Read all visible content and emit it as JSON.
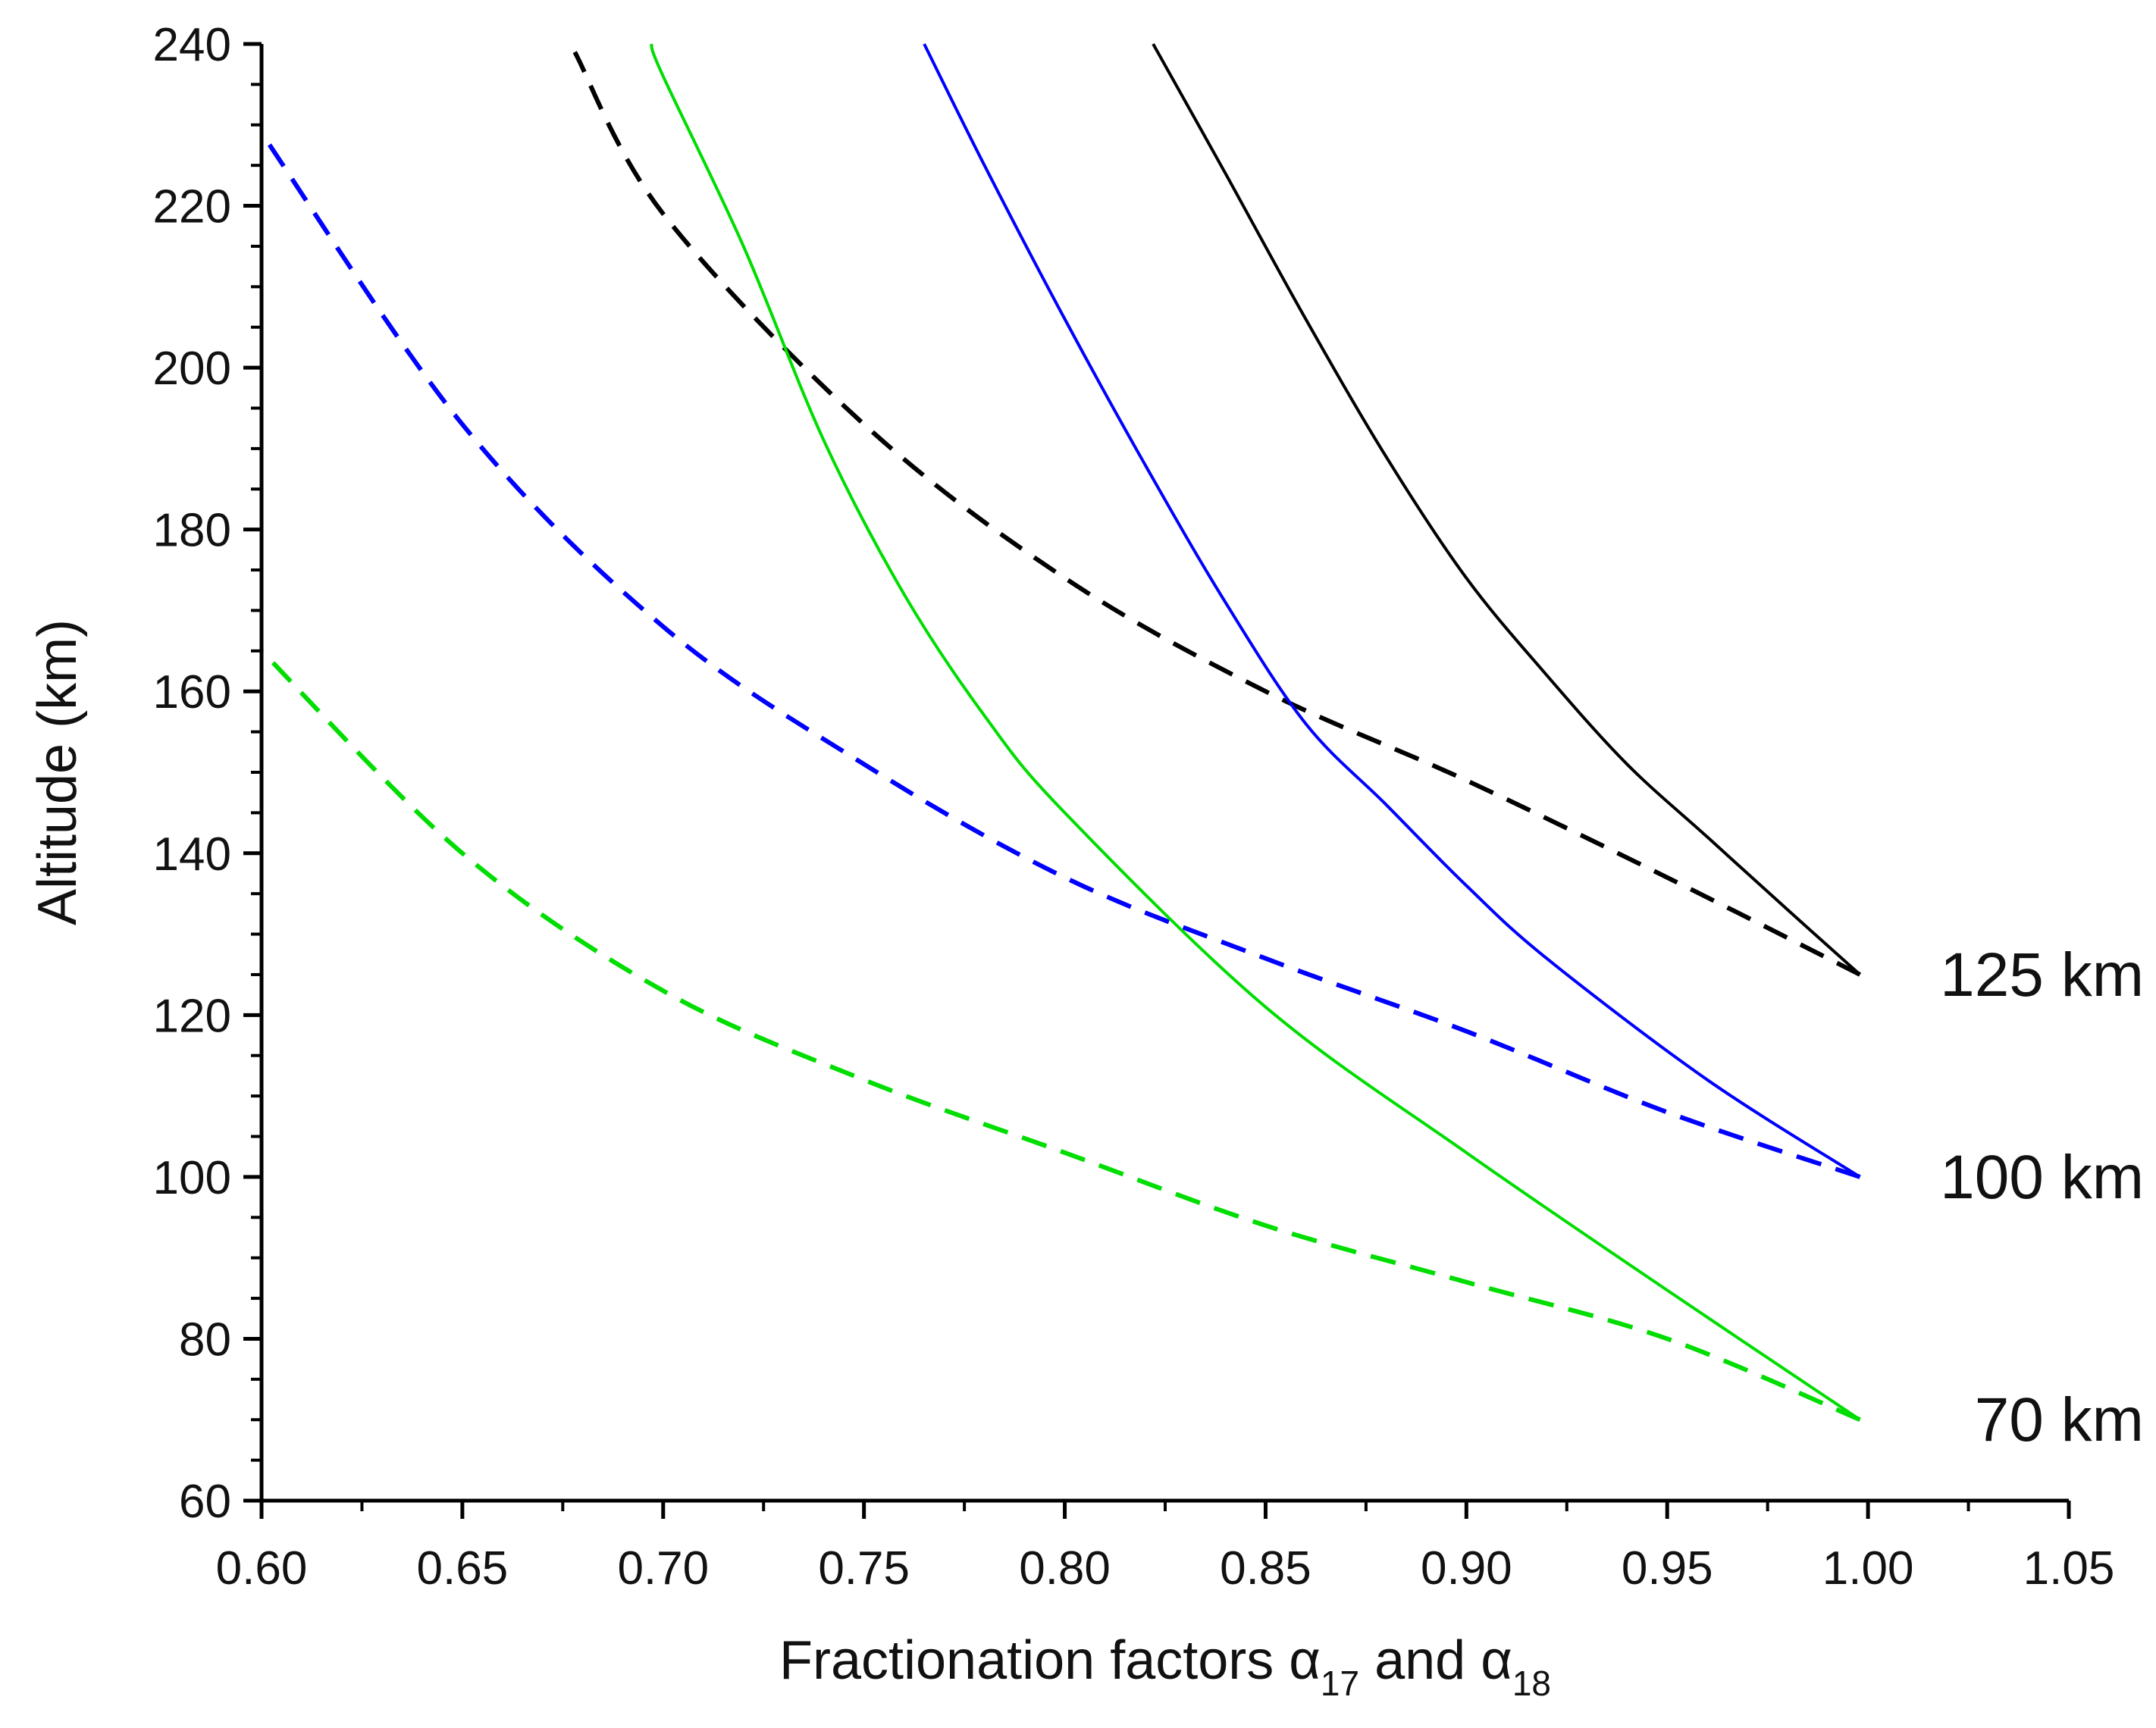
{
  "chart_data": {
    "type": "line",
    "title": "",
    "xlabel_main": "Fractionation factors ",
    "xlabel_greek": "α",
    "xlabel_sub1": "17",
    "xlabel_and": " and ",
    "xlabel_sub2": "18",
    "ylabel": "Altitude (km)",
    "xlim": [
      0.6,
      1.05
    ],
    "ylim": [
      60,
      240
    ],
    "xticks": [
      0.6,
      0.65,
      0.7,
      0.75,
      0.8,
      0.85,
      0.9,
      0.95,
      1.0,
      1.05
    ],
    "xtick_labels": [
      "0.60",
      "0.65",
      "0.70",
      "0.75",
      "0.80",
      "0.85",
      "0.90",
      "0.95",
      "1.00",
      "1.05"
    ],
    "yticks": [
      60,
      80,
      100,
      120,
      140,
      160,
      180,
      200,
      220,
      240
    ],
    "ytick_labels": [
      "60",
      "80",
      "100",
      "120",
      "140",
      "160",
      "180",
      "200",
      "220",
      "240"
    ],
    "series": [
      {
        "name": "125 km solid",
        "color": "#000000",
        "dash": false,
        "x": [
          0.998,
          0.98,
          0.96,
          0.94,
          0.92,
          0.9,
          0.88,
          0.86,
          0.84,
          0.822
        ],
        "y": [
          125,
          133,
          142,
          151,
          162,
          174,
          189,
          206,
          224,
          240
        ]
      },
      {
        "name": "125 km dashed",
        "color": "#000000",
        "dash": true,
        "x": [
          0.998,
          0.95,
          0.9,
          0.85,
          0.8,
          0.75,
          0.7,
          0.678
        ],
        "y": [
          125,
          137,
          149,
          160,
          174,
          193,
          219,
          239
        ]
      },
      {
        "name": "100 km solid",
        "color": "#0000ff",
        "dash": false,
        "x": [
          0.998,
          0.96,
          0.92,
          0.9,
          0.88,
          0.86,
          0.84,
          0.82,
          0.8,
          0.78,
          0.765
        ],
        "y": [
          100,
          112,
          127,
          136,
          146,
          156,
          171,
          188,
          206,
          225,
          240
        ]
      },
      {
        "name": "100 km dashed",
        "color": "#0000ff",
        "dash": true,
        "x": [
          0.998,
          0.95,
          0.9,
          0.85,
          0.8,
          0.75,
          0.7,
          0.65,
          0.6
        ],
        "y": [
          100,
          108,
          118,
          127,
          137,
          151,
          168,
          193,
          229
        ]
      },
      {
        "name": "70 km solid",
        "color": "#00dd00",
        "dash": false,
        "x": [
          0.998,
          0.95,
          0.9,
          0.85,
          0.8,
          0.78,
          0.76,
          0.74,
          0.72,
          0.7,
          0.697
        ],
        "y": [
          70,
          86,
          103,
          121,
          145,
          157,
          172,
          191,
          215,
          236,
          240
        ]
      },
      {
        "name": "70 km dashed",
        "color": "#00dd00",
        "dash": true,
        "x": [
          0.998,
          0.95,
          0.9,
          0.85,
          0.8,
          0.75,
          0.7,
          0.65,
          0.6
        ],
        "y": [
          70,
          80,
          87,
          94,
          103,
          112,
          123,
          140,
          165
        ]
      }
    ],
    "annotations": [
      {
        "text": "125 km",
        "y": 125
      },
      {
        "text": "100 km",
        "y": 100
      },
      {
        "text": "70 km",
        "y": 70
      }
    ]
  }
}
